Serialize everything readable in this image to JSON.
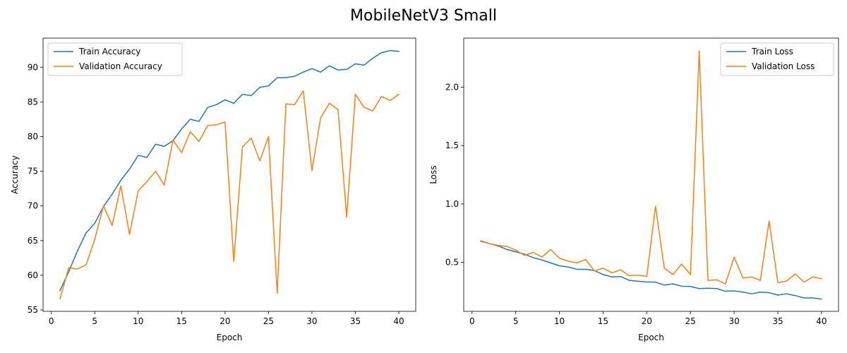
{
  "figure": {
    "title": "MobileNetV3 Small"
  },
  "chart_data": [
    {
      "type": "line",
      "title": "",
      "xlabel": "Epoch",
      "ylabel": "Accuracy",
      "xlim": [
        -0.95,
        41.95
      ],
      "ylim": [
        54.8,
        94.2
      ],
      "xticks": [
        0,
        5,
        10,
        15,
        20,
        25,
        30,
        35,
        40
      ],
      "yticks": [
        55,
        60,
        65,
        70,
        75,
        80,
        85,
        90
      ],
      "grid": false,
      "legend_position": "top-left",
      "x": [
        1,
        2,
        3,
        4,
        5,
        6,
        7,
        8,
        9,
        10,
        11,
        12,
        13,
        14,
        15,
        16,
        17,
        18,
        19,
        20,
        21,
        22,
        23,
        24,
        25,
        26,
        27,
        28,
        29,
        30,
        31,
        32,
        33,
        34,
        35,
        36,
        37,
        38,
        39,
        40
      ],
      "series": [
        {
          "name": "Train Accuracy",
          "color": "#1f77b4",
          "values": [
            57.8,
            60.5,
            63.5,
            66.1,
            67.5,
            69.9,
            71.7,
            73.7,
            75.3,
            77.3,
            77.0,
            78.9,
            78.6,
            79.4,
            81.1,
            82.5,
            82.2,
            84.2,
            84.6,
            85.3,
            84.8,
            86.1,
            85.9,
            87.1,
            87.3,
            88.5,
            88.5,
            88.7,
            89.3,
            89.8,
            89.3,
            90.2,
            89.6,
            89.7,
            90.5,
            90.3,
            91.3,
            92.1,
            92.4,
            92.3
          ]
        },
        {
          "name": "Validation Accuracy",
          "color": "#ff7f0e",
          "values": [
            56.6,
            61.1,
            60.9,
            61.5,
            65.2,
            70.0,
            67.2,
            72.9,
            65.9,
            72.2,
            73.5,
            75.0,
            73.0,
            79.5,
            77.7,
            80.7,
            79.3,
            81.6,
            81.7,
            82.1,
            62.0,
            78.5,
            79.8,
            76.5,
            80.0,
            57.4,
            84.7,
            84.6,
            86.6,
            75.1,
            82.7,
            84.8,
            83.9,
            68.4,
            86.1,
            84.2,
            83.7,
            85.8,
            85.2,
            86.1
          ]
        }
      ]
    },
    {
      "type": "line",
      "title": "",
      "xlabel": "Epoch",
      "ylabel": "Loss",
      "xlim": [
        -0.95,
        41.95
      ],
      "ylim": [
        0.08,
        2.42
      ],
      "xticks": [
        0,
        5,
        10,
        15,
        20,
        25,
        30,
        35,
        40
      ],
      "yticks": [
        0.5,
        1.0,
        1.5,
        2.0
      ],
      "grid": false,
      "legend_position": "top-right",
      "x": [
        1,
        2,
        3,
        4,
        5,
        6,
        7,
        8,
        9,
        10,
        11,
        12,
        13,
        14,
        15,
        16,
        17,
        18,
        19,
        20,
        21,
        22,
        23,
        24,
        25,
        26,
        27,
        28,
        29,
        30,
        31,
        32,
        33,
        34,
        35,
        36,
        37,
        38,
        39,
        40
      ],
      "series": [
        {
          "name": "Train Loss",
          "color": "#1f77b4",
          "values": [
            0.68,
            0.66,
            0.64,
            0.61,
            0.59,
            0.57,
            0.54,
            0.52,
            0.495,
            0.47,
            0.46,
            0.44,
            0.44,
            0.43,
            0.395,
            0.375,
            0.378,
            0.345,
            0.338,
            0.332,
            0.33,
            0.305,
            0.315,
            0.295,
            0.293,
            0.275,
            0.278,
            0.275,
            0.252,
            0.255,
            0.245,
            0.23,
            0.245,
            0.24,
            0.22,
            0.23,
            0.215,
            0.195,
            0.195,
            0.185
          ]
        },
        {
          "name": "Validation Loss",
          "color": "#ff7f0e",
          "values": [
            0.685,
            0.66,
            0.645,
            0.635,
            0.605,
            0.56,
            0.585,
            0.545,
            0.61,
            0.535,
            0.51,
            0.495,
            0.525,
            0.425,
            0.45,
            0.41,
            0.435,
            0.385,
            0.39,
            0.38,
            0.98,
            0.45,
            0.395,
            0.485,
            0.395,
            2.31,
            0.345,
            0.35,
            0.315,
            0.545,
            0.365,
            0.375,
            0.345,
            0.855,
            0.325,
            0.34,
            0.4,
            0.33,
            0.375,
            0.36
          ]
        }
      ]
    }
  ]
}
